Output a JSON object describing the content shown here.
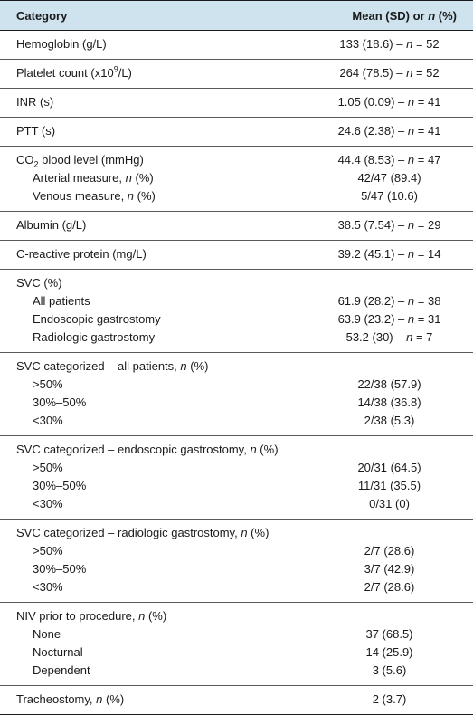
{
  "header": {
    "col1": "Category",
    "col2_prefix": "Mean (SD) or ",
    "col2_n": "n",
    "col2_suffix": " (%)"
  },
  "groups": [
    {
      "rows": [
        {
          "label": "Hemoglobin (g/L)",
          "mean": "133 (18.6)",
          "n": "52"
        }
      ]
    },
    {
      "rows": [
        {
          "label_pre": "Platelet count (x10",
          "label_sup": "9",
          "label_post": "/L)",
          "mean": "264 (78.5)",
          "n": "52"
        }
      ]
    },
    {
      "rows": [
        {
          "label": "INR (s)",
          "mean": "1.05 (0.09)",
          "n": "41"
        }
      ]
    },
    {
      "rows": [
        {
          "label": "PTT (s)",
          "mean": "24.6 (2.38)",
          "n": "41"
        }
      ]
    },
    {
      "rows": [
        {
          "label_pre": "CO",
          "label_sub": "2",
          "label_post": " blood level (mmHg)",
          "mean": "44.4 (8.53)",
          "n": "47"
        },
        {
          "label": "Arterial measure, ",
          "n_tag": "n",
          "label_tail": " (%)",
          "value": "42/47 (89.4)"
        },
        {
          "label": "Venous measure, ",
          "n_tag": "n",
          "label_tail": " (%)",
          "value": "5/47 (10.6)"
        }
      ]
    },
    {
      "rows": [
        {
          "label": "Albumin (g/L)",
          "mean": "38.5 (7.54)",
          "n": "29"
        }
      ]
    },
    {
      "rows": [
        {
          "label": "C-reactive protein (mg/L)",
          "mean": "39.2 (45.1)",
          "n": "14"
        }
      ]
    },
    {
      "rows": [
        {
          "label": "SVC (%)"
        },
        {
          "label": "All patients",
          "mean": "61.9 (28.2)",
          "n": "38"
        },
        {
          "label": "Endoscopic gastrostomy",
          "mean": "63.9 (23.2)",
          "n": "31"
        },
        {
          "label": "Radiologic gastrostomy",
          "mean": "53.2 (30)",
          "n": "7"
        }
      ]
    },
    {
      "rows": [
        {
          "label": "SVC categorized – all patients, ",
          "n_tag": "n",
          "label_tail": " (%)"
        },
        {
          "label": ">50%",
          "value": "22/38 (57.9)"
        },
        {
          "label": "30%–50%",
          "value": "14/38 (36.8)"
        },
        {
          "label": "<30%",
          "value": "2/38 (5.3)"
        }
      ]
    },
    {
      "rows": [
        {
          "label": "SVC categorized – endoscopic gastrostomy, ",
          "n_tag": "n",
          "label_tail": " (%)"
        },
        {
          "label": ">50%",
          "value": "20/31 (64.5)"
        },
        {
          "label": "30%–50%",
          "value": "11/31 (35.5)"
        },
        {
          "label": "<30%",
          "value": "0/31 (0)"
        }
      ]
    },
    {
      "rows": [
        {
          "label": "SVC categorized – radiologic gastrostomy, ",
          "n_tag": "n",
          "label_tail": " (%)"
        },
        {
          "label": ">50%",
          "value": "2/7 (28.6)"
        },
        {
          "label": "30%–50%",
          "value": "3/7 (42.9)"
        },
        {
          "label": "<30%",
          "value": "2/7 (28.6)"
        }
      ]
    },
    {
      "rows": [
        {
          "label": "NIV prior to procedure, ",
          "n_tag": "n",
          "label_tail": " (%)"
        },
        {
          "label": "None",
          "value": "37 (68.5)"
        },
        {
          "label": "Nocturnal",
          "value": "14 (25.9)"
        },
        {
          "label": "Dependent",
          "value": "3 (5.6)"
        }
      ]
    },
    {
      "rows": [
        {
          "label": "Tracheostomy, ",
          "n_tag": "n",
          "label_tail": " (%)",
          "value": "2 (3.7)"
        }
      ]
    }
  ],
  "n_separator": " – ",
  "n_symbol": "n",
  "n_equals": " = "
}
